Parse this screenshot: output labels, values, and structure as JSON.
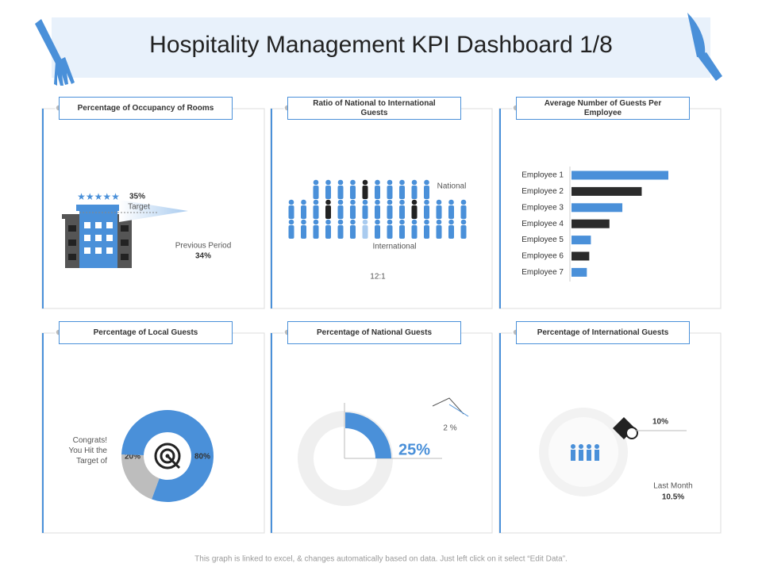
{
  "title": "Hospitality Management KPI Dashboard 1/8",
  "footer": "This graph is linked to excel, & changes automatically based on data. Just left click on it select “Edit Data”.",
  "panels": [
    {
      "title": "Percentage of Occupancy of Rooms",
      "target_label": "35%",
      "target_caption": "Target",
      "previous_caption": "Previous Period",
      "previous_label": "34%"
    },
    {
      "title": "Ratio of National to International Guests",
      "national_caption": "National",
      "international_caption": "International",
      "ratio": "12:1"
    },
    {
      "title": "Average Number of Guests Per Employee",
      "chart_data": {
        "type": "bar",
        "orientation": "horizontal",
        "categories": [
          "Employee 1",
          "Employee 2",
          "Employee 3",
          "Employee 4",
          "Employee 5",
          "Employee 6",
          "Employee 7"
        ],
        "values": [
          12,
          8.7,
          6.3,
          4.7,
          2.4,
          2.2,
          1.9
        ],
        "colors": [
          "#4a90d9",
          "#2b2b2b",
          "#4a90d9",
          "#2b2b2b",
          "#4a90d9",
          "#2b2b2b",
          "#4a90d9"
        ],
        "xlim": [
          0,
          12
        ]
      }
    },
    {
      "title": "Percentage of Local Guests",
      "caption": "Congrats! You Hit the Target of",
      "chart_data": {
        "type": "donut",
        "values": [
          20,
          80
        ],
        "value_labels": [
          "20%",
          "80%"
        ],
        "colors": [
          "#bdbdbd",
          "#4a90d9"
        ]
      }
    },
    {
      "title": "Percentage of National Guests",
      "value": 25,
      "value_label": "25%",
      "change_label": "2 %"
    },
    {
      "title": "Percentage of International Guests",
      "value_label": "10%",
      "last_month_caption": "Last Month",
      "last_month_label": "10.5%"
    }
  ]
}
